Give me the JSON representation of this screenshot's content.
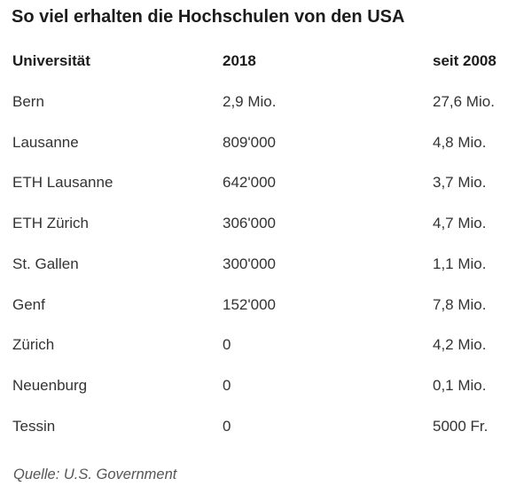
{
  "title": "So viel erhalten die Hochschulen von den USA",
  "table": {
    "headers": [
      "Universität",
      "2018",
      "seit 2008"
    ],
    "rows": [
      [
        "Bern",
        "2,9 Mio.",
        "27,6 Mio."
      ],
      [
        "Lausanne",
        "809'000",
        "4,8 Mio."
      ],
      [
        "ETH Lausanne",
        "642'000",
        "3,7 Mio."
      ],
      [
        "ETH Zürich",
        "306'000",
        "4,7 Mio."
      ],
      [
        "St. Gallen",
        "300'000",
        "1,1 Mio."
      ],
      [
        "Genf",
        "152'000",
        "7,8 Mio."
      ],
      [
        "Zürich",
        "0",
        "4,2 Mio."
      ],
      [
        "Neuenburg",
        "0",
        "0,1 Mio."
      ],
      [
        "Tessin",
        "0",
        "5000 Fr."
      ]
    ]
  },
  "source": "Quelle: U.S. Government"
}
